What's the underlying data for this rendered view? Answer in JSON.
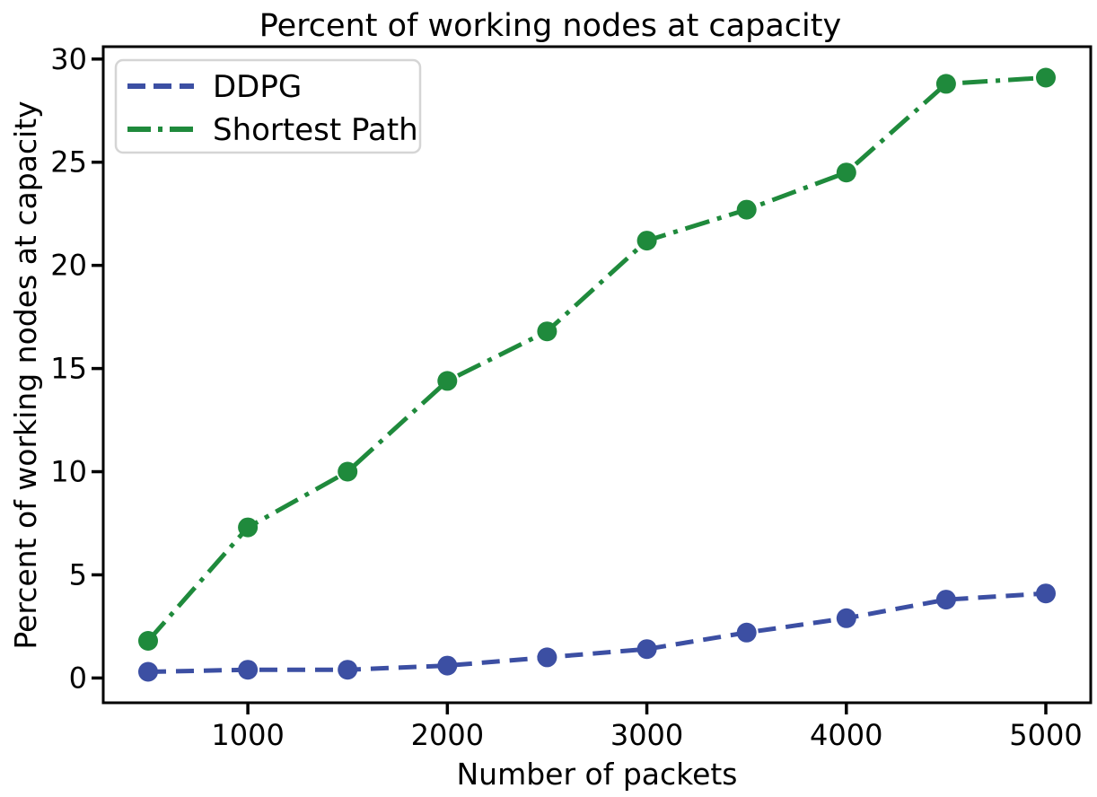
{
  "chart_data": {
    "type": "line",
    "title": "Percent of working nodes at capacity",
    "xlabel": "Number of packets",
    "ylabel": "Percent of working nodes at capacity",
    "x": [
      500,
      1000,
      1500,
      2000,
      2500,
      3000,
      3500,
      4000,
      4500,
      5000
    ],
    "series": [
      {
        "name": "DDPG",
        "color": "#3c4fa3",
        "linestyle": "dashed",
        "values": [
          0.3,
          0.4,
          0.4,
          0.6,
          1.0,
          1.4,
          2.2,
          2.9,
          3.8,
          4.1
        ]
      },
      {
        "name": "Shortest Path",
        "color": "#1f8a3c",
        "linestyle": "dashdot",
        "values": [
          1.8,
          7.3,
          10.0,
          14.4,
          16.8,
          21.2,
          22.7,
          24.5,
          28.8,
          29.1
        ]
      }
    ],
    "xticks": [
      1000,
      2000,
      3000,
      4000,
      5000
    ],
    "yticks": [
      0,
      5,
      10,
      15,
      20,
      25,
      30
    ],
    "xlim": [
      275,
      5225
    ],
    "ylim": [
      -1.2,
      30.6
    ],
    "legend_position": "upper-left",
    "grid": false,
    "frame_color": "#000000",
    "background_color": "#ffffff",
    "legend_border_color": "#d5d5d5"
  }
}
